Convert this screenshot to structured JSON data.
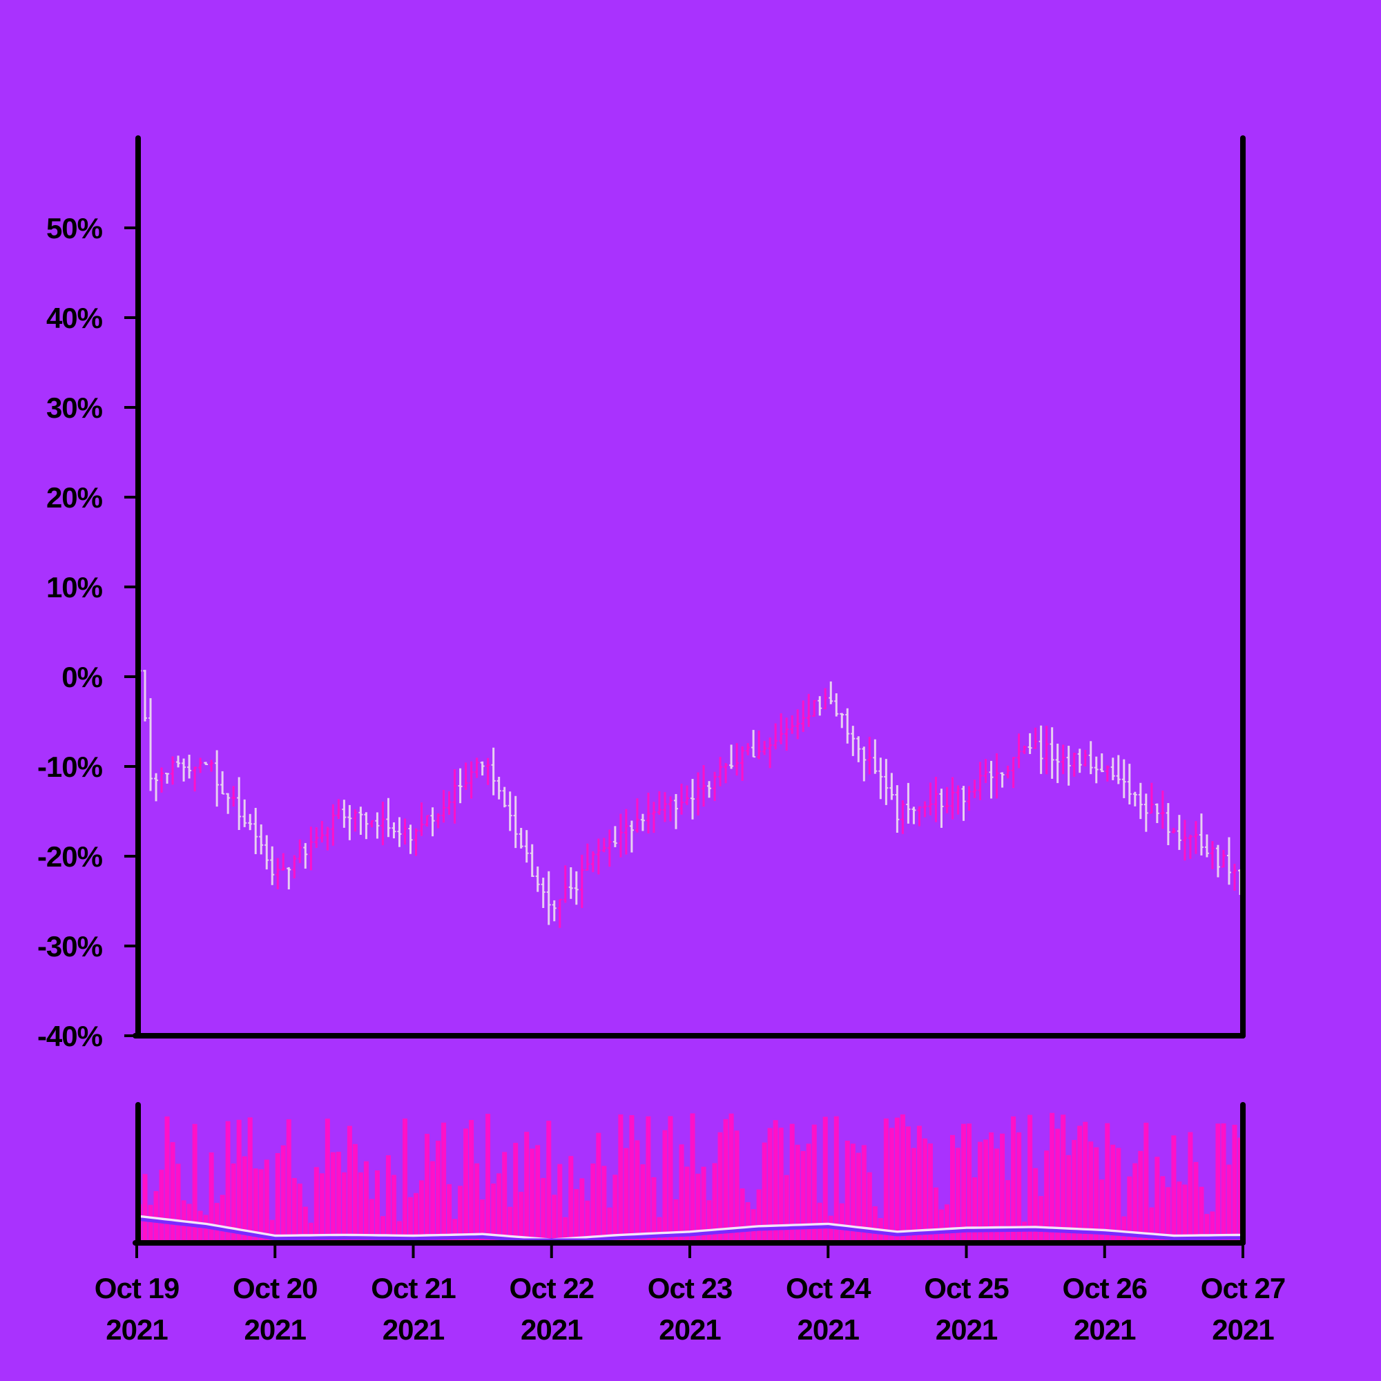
{
  "chart_data": {
    "type": "ohlc",
    "x_range": [
      "Oct 19 2021",
      "Oct 27 2021"
    ],
    "ylim": [
      -40,
      60
    ],
    "y_unit": "%",
    "y_ticks": [
      {
        "value": 50,
        "label": "50%"
      },
      {
        "value": 40,
        "label": "40%"
      },
      {
        "value": 30,
        "label": "30%"
      },
      {
        "value": 20,
        "label": "20%"
      },
      {
        "value": 10,
        "label": "10%"
      },
      {
        "value": 0,
        "label": "0%"
      },
      {
        "value": -10,
        "label": "-10%"
      },
      {
        "value": -20,
        "label": "-20%"
      },
      {
        "value": -30,
        "label": "-30%"
      },
      {
        "value": -40,
        "label": "-40%"
      }
    ],
    "x_ticks": [
      {
        "month_day": "Oct 19",
        "year": "2021"
      },
      {
        "month_day": "Oct 20",
        "year": "2021"
      },
      {
        "month_day": "Oct 21",
        "year": "2021"
      },
      {
        "month_day": "Oct 22",
        "year": "2021"
      },
      {
        "month_day": "Oct 23",
        "year": "2021"
      },
      {
        "month_day": "Oct 24",
        "year": "2021"
      },
      {
        "month_day": "Oct 25",
        "year": "2021"
      },
      {
        "month_day": "Oct 26",
        "year": "2021"
      },
      {
        "month_day": "Oct 27",
        "year": "2021"
      }
    ],
    "close_trend": [
      {
        "day": 0.0,
        "pct": 3
      },
      {
        "day": 0.1,
        "pct": -11
      },
      {
        "day": 0.5,
        "pct": -9
      },
      {
        "day": 1.0,
        "pct": -22
      },
      {
        "day": 1.5,
        "pct": -15
      },
      {
        "day": 2.0,
        "pct": -18
      },
      {
        "day": 2.5,
        "pct": -9
      },
      {
        "day": 3.0,
        "pct": -26
      },
      {
        "day": 3.5,
        "pct": -17
      },
      {
        "day": 4.0,
        "pct": -13
      },
      {
        "day": 4.5,
        "pct": -8
      },
      {
        "day": 5.0,
        "pct": -2
      },
      {
        "day": 5.5,
        "pct": -15
      },
      {
        "day": 6.0,
        "pct": -13
      },
      {
        "day": 6.5,
        "pct": -8
      },
      {
        "day": 7.0,
        "pct": -10
      },
      {
        "day": 7.5,
        "pct": -17
      },
      {
        "day": 8.0,
        "pct": -22
      }
    ],
    "volume_trend": [
      {
        "day": 0.0,
        "value": 0.3
      },
      {
        "day": 0.5,
        "value": 0.2
      },
      {
        "day": 1.0,
        "value": 0.05
      },
      {
        "day": 1.5,
        "value": 0.06
      },
      {
        "day": 2.0,
        "value": 0.05
      },
      {
        "day": 2.5,
        "value": 0.07
      },
      {
        "day": 3.0,
        "value": 0.0
      },
      {
        "day": 3.5,
        "value": 0.06
      },
      {
        "day": 4.0,
        "value": 0.1
      },
      {
        "day": 4.5,
        "value": 0.17
      },
      {
        "day": 5.0,
        "value": 0.2
      },
      {
        "day": 5.5,
        "value": 0.1
      },
      {
        "day": 6.0,
        "value": 0.15
      },
      {
        "day": 6.5,
        "value": 0.16
      },
      {
        "day": 7.0,
        "value": 0.12
      },
      {
        "day": 7.5,
        "value": 0.05
      },
      {
        "day": 8.0,
        "value": 0.06
      }
    ],
    "colors": {
      "background": "#a932fe",
      "up": "#ff11c8",
      "down": "#e8d0f0",
      "volume": "#ff11c8",
      "ma_fast": "#f4e6f8",
      "ma_slow": "#7a2aff",
      "axis": "#000000"
    }
  }
}
